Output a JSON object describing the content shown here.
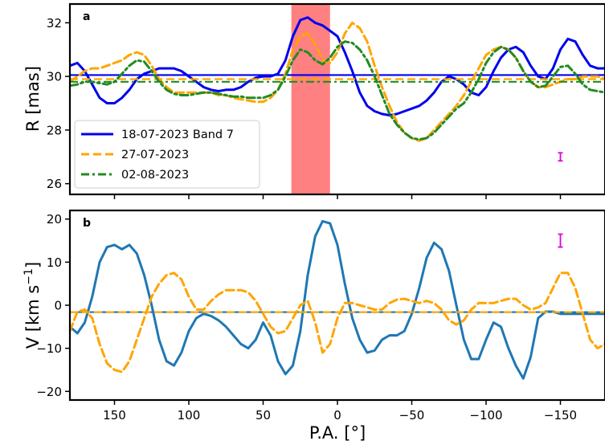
{
  "chart_data": [
    {
      "panel_label": "a",
      "type": "line",
      "ylabel": "R [mas]",
      "xlim": [
        180,
        -180
      ],
      "ylim": [
        25.6,
        32.7
      ],
      "xticks": [
        150,
        100,
        50,
        0,
        -50,
        -100,
        -150
      ],
      "xtick_labels": [
        "150",
        "100",
        "50",
        "0",
        "−50",
        "−100",
        "−150"
      ],
      "yticks": [
        26,
        28,
        30,
        32
      ],
      "ytick_labels": [
        "26",
        "28",
        "30",
        "32"
      ],
      "shaded_region": {
        "x_from": 31,
        "x_to": 5,
        "color": "#ff8080"
      },
      "legend": {
        "position": "lower-left"
      },
      "error_bar": {
        "x": -150,
        "y": 27.0,
        "yerr": 0.15,
        "color": "#dd00dd"
      },
      "series": [
        {
          "name": "18-07-2023 Band 7",
          "color": "#0000ee",
          "style": "solid",
          "mean": 30.05,
          "x": [
            180,
            175,
            170,
            165,
            160,
            155,
            150,
            145,
            140,
            135,
            130,
            125,
            120,
            115,
            110,
            105,
            100,
            95,
            90,
            85,
            80,
            75,
            70,
            65,
            60,
            55,
            50,
            45,
            40,
            35,
            30,
            25,
            20,
            15,
            10,
            5,
            0,
            -5,
            -10,
            -15,
            -20,
            -25,
            -30,
            -35,
            -40,
            -45,
            -50,
            -55,
            -60,
            -65,
            -70,
            -75,
            -80,
            -85,
            -90,
            -95,
            -100,
            -105,
            -110,
            -115,
            -120,
            -125,
            -130,
            -135,
            -140,
            -145,
            -150,
            -155,
            -160,
            -165,
            -170,
            -175,
            -180
          ],
          "y": [
            30.4,
            30.5,
            30.2,
            29.7,
            29.2,
            29.0,
            29.0,
            29.2,
            29.5,
            29.9,
            30.1,
            30.2,
            30.3,
            30.3,
            30.3,
            30.2,
            30.0,
            29.8,
            29.6,
            29.5,
            29.45,
            29.5,
            29.5,
            29.6,
            29.8,
            29.95,
            30.0,
            30.0,
            30.1,
            30.6,
            31.5,
            32.1,
            32.2,
            32.0,
            31.9,
            31.7,
            31.5,
            30.9,
            30.2,
            29.4,
            28.9,
            28.7,
            28.6,
            28.55,
            28.6,
            28.7,
            28.8,
            28.9,
            29.1,
            29.4,
            29.8,
            30.0,
            29.9,
            29.7,
            29.4,
            29.3,
            29.6,
            30.2,
            30.7,
            31.0,
            31.1,
            30.9,
            30.4,
            30.0,
            29.9,
            30.3,
            31.0,
            31.4,
            31.3,
            30.8,
            30.4,
            30.3,
            30.3
          ]
        },
        {
          "name": "27-07-2023",
          "color": "#ffa500",
          "style": "dashed",
          "mean": 29.9,
          "x": [
            180,
            175,
            170,
            165,
            160,
            155,
            150,
            145,
            140,
            135,
            130,
            125,
            120,
            115,
            110,
            105,
            100,
            95,
            90,
            85,
            80,
            75,
            70,
            65,
            60,
            55,
            50,
            45,
            40,
            35,
            30,
            25,
            20,
            15,
            10,
            5,
            0,
            -5,
            -10,
            -15,
            -20,
            -25,
            -30,
            -35,
            -40,
            -45,
            -50,
            -55,
            -60,
            -65,
            -70,
            -75,
            -80,
            -85,
            -90,
            -95,
            -100,
            -105,
            -110,
            -115,
            -120,
            -125,
            -130,
            -135,
            -140,
            -145,
            -150,
            -155,
            -160,
            -165,
            -170,
            -175,
            -180
          ],
          "y": [
            29.8,
            30.0,
            30.2,
            30.3,
            30.3,
            30.4,
            30.5,
            30.6,
            30.8,
            30.9,
            30.8,
            30.4,
            29.9,
            29.6,
            29.4,
            29.4,
            29.4,
            29.4,
            29.4,
            29.4,
            29.3,
            29.3,
            29.2,
            29.15,
            29.1,
            29.05,
            29.05,
            29.2,
            29.5,
            30.1,
            31.0,
            31.5,
            31.6,
            31.2,
            30.6,
            30.5,
            30.9,
            31.6,
            32.0,
            31.8,
            31.3,
            30.4,
            29.6,
            28.9,
            28.3,
            27.9,
            27.7,
            27.6,
            27.7,
            28.0,
            28.3,
            28.6,
            28.9,
            29.3,
            29.8,
            30.3,
            30.8,
            31.0,
            31.1,
            31.0,
            30.7,
            30.2,
            29.8,
            29.6,
            29.6,
            29.7,
            29.8,
            29.9,
            29.9,
            30.0,
            30.0,
            30.0,
            29.9
          ]
        },
        {
          "name": "02-08-2023",
          "color": "#228b22",
          "style": "dashdot",
          "mean": 29.8,
          "x": [
            180,
            175,
            170,
            165,
            160,
            155,
            150,
            145,
            140,
            135,
            130,
            125,
            120,
            115,
            110,
            105,
            100,
            95,
            90,
            85,
            80,
            75,
            70,
            65,
            60,
            55,
            50,
            45,
            40,
            35,
            30,
            25,
            20,
            15,
            10,
            5,
            0,
            -5,
            -10,
            -15,
            -20,
            -25,
            -30,
            -35,
            -40,
            -45,
            -50,
            -55,
            -60,
            -65,
            -70,
            -75,
            -80,
            -85,
            -90,
            -95,
            -100,
            -105,
            -110,
            -115,
            -120,
            -125,
            -130,
            -135,
            -140,
            -145,
            -150,
            -155,
            -160,
            -165,
            -170,
            -175,
            -180
          ],
          "y": [
            29.65,
            29.7,
            29.8,
            29.8,
            29.75,
            29.7,
            29.8,
            30.1,
            30.4,
            30.6,
            30.55,
            30.2,
            29.8,
            29.5,
            29.35,
            29.3,
            29.3,
            29.35,
            29.4,
            29.4,
            29.35,
            29.3,
            29.25,
            29.25,
            29.2,
            29.2,
            29.2,
            29.3,
            29.5,
            30.0,
            30.6,
            31.0,
            30.9,
            30.6,
            30.45,
            30.7,
            31.1,
            31.3,
            31.25,
            31.0,
            30.6,
            30.0,
            29.3,
            28.6,
            28.2,
            27.9,
            27.7,
            27.65,
            27.7,
            27.9,
            28.2,
            28.5,
            28.8,
            29.0,
            29.4,
            29.9,
            30.5,
            30.9,
            31.1,
            31.0,
            30.7,
            30.2,
            29.8,
            29.6,
            29.65,
            30.0,
            30.35,
            30.4,
            30.1,
            29.7,
            29.5,
            29.45,
            29.4
          ]
        }
      ]
    },
    {
      "panel_label": "b",
      "type": "line",
      "xlabel": "P.A. [°]",
      "ylabel": "V [km s⁻¹]",
      "ylabel_main": "V [km s",
      "ylabel_sup": "−1",
      "ylabel_close": "]",
      "xlim": [
        180,
        -180
      ],
      "ylim": [
        -22,
        22
      ],
      "xticks": [
        150,
        100,
        50,
        0,
        -50,
        -100,
        -150
      ],
      "xtick_labels": [
        "150",
        "100",
        "50",
        "0",
        "−50",
        "−100",
        "−150"
      ],
      "yticks": [
        -20,
        -10,
        0,
        10,
        20
      ],
      "ytick_labels": [
        "−20",
        "−10",
        "0",
        "10",
        "20"
      ],
      "error_bar": {
        "x": -150,
        "y": 15.0,
        "yerr": 1.5,
        "color": "#dd00dd"
      },
      "series": [
        {
          "color": "#1f77b4",
          "style": "solid",
          "mean": -1.6,
          "x": [
            180,
            175,
            170,
            165,
            160,
            155,
            150,
            145,
            140,
            135,
            130,
            125,
            120,
            115,
            110,
            105,
            100,
            95,
            90,
            85,
            80,
            75,
            70,
            65,
            60,
            55,
            50,
            45,
            40,
            35,
            30,
            25,
            20,
            15,
            10,
            5,
            0,
            -5,
            -10,
            -15,
            -20,
            -25,
            -30,
            -35,
            -40,
            -45,
            -50,
            -55,
            -60,
            -65,
            -70,
            -75,
            -80,
            -85,
            -90,
            -95,
            -100,
            -105,
            -110,
            -115,
            -120,
            -125,
            -130,
            -135,
            -140,
            -145,
            -150,
            -155,
            -160,
            -165,
            -170,
            -175,
            -180
          ],
          "y": [
            -5,
            -6.5,
            -4,
            2,
            10,
            13.5,
            14,
            13,
            14,
            12,
            7,
            0,
            -8,
            -13,
            -14,
            -11,
            -6,
            -3,
            -2,
            -2.5,
            -3.5,
            -5,
            -7,
            -9,
            -10,
            -8,
            -4,
            -7,
            -13,
            -16,
            -14,
            -6,
            7,
            16,
            19.5,
            19,
            14,
            5,
            -3,
            -8,
            -11,
            -10.5,
            -8,
            -7,
            -7,
            -6,
            -2,
            4,
            11,
            14.5,
            13,
            8,
            0,
            -8,
            -12.5,
            -12.5,
            -8,
            -4,
            -5,
            -10,
            -14,
            -17,
            -12,
            -3,
            -1.5,
            -1.5,
            -2,
            -2,
            -2,
            -2,
            -2,
            -2,
            -2
          ]
        },
        {
          "color": "#ffa500",
          "style": "dashed",
          "mean": -1.6,
          "x": [
            180,
            175,
            170,
            165,
            160,
            155,
            150,
            145,
            140,
            135,
            130,
            125,
            120,
            115,
            110,
            105,
            100,
            95,
            90,
            85,
            80,
            75,
            70,
            65,
            60,
            55,
            50,
            45,
            40,
            35,
            30,
            25,
            20,
            15,
            10,
            5,
            0,
            -5,
            -10,
            -15,
            -20,
            -25,
            -30,
            -35,
            -40,
            -45,
            -50,
            -55,
            -60,
            -65,
            -70,
            -75,
            -80,
            -85,
            -90,
            -95,
            -100,
            -105,
            -110,
            -115,
            -120,
            -125,
            -130,
            -135,
            -140,
            -145,
            -150,
            -155,
            -160,
            -165,
            -170,
            -175,
            -180
          ],
          "y": [
            -6,
            -1.5,
            -1,
            -3,
            -9,
            -13.5,
            -15,
            -15.5,
            -13,
            -8,
            -3,
            2,
            5,
            7,
            7.5,
            6,
            2,
            -1,
            -1,
            1,
            2.5,
            3.5,
            3.5,
            3.5,
            3,
            1,
            -2,
            -5,
            -6.5,
            -6,
            -3,
            0,
            1,
            -4,
            -11,
            -9,
            -3,
            0.5,
            0.5,
            0,
            -0.5,
            -1,
            -1,
            0.5,
            1.3,
            1.5,
            1,
            0.5,
            1,
            0.5,
            -1,
            -3.5,
            -4.5,
            -3.5,
            -1,
            0.5,
            0.5,
            0.5,
            1,
            1.5,
            1.5,
            0,
            -1,
            -0.5,
            0.5,
            4,
            7.5,
            7.5,
            4,
            -2,
            -8,
            -10,
            -9
          ]
        }
      ]
    }
  ]
}
